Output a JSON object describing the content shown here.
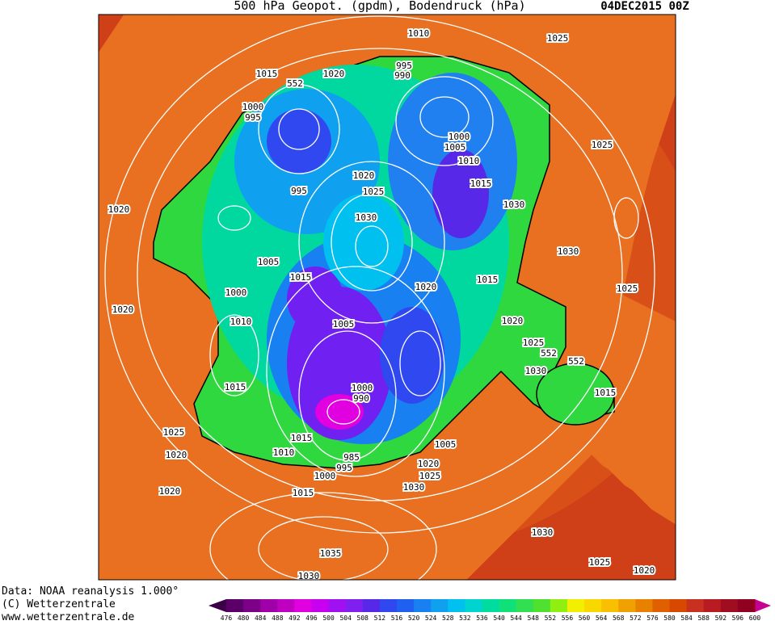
{
  "header": {
    "title": "500 hPa Geopot. (gpdm), Bodendruck (hPa)",
    "date": "04DEC2015 00Z"
  },
  "footer": {
    "lines": [
      "Data: NOAA reanalysis 1.000°",
      "(C) Wetterzentrale",
      "www.wetterzentrale.de"
    ]
  },
  "legend": {
    "levels": [
      476,
      480,
      484,
      488,
      492,
      496,
      500,
      504,
      508,
      512,
      516,
      520,
      524,
      528,
      532,
      536,
      540,
      544,
      548,
      552,
      556,
      560,
      564,
      568,
      572,
      576,
      580,
      584,
      588,
      592,
      596,
      600
    ],
    "colors": [
      "#5a0068",
      "#7c0088",
      "#a000a8",
      "#c000c0",
      "#e000e0",
      "#c800f0",
      "#a010f0",
      "#8020f0",
      "#5828e8",
      "#3048f0",
      "#2060f0",
      "#1880f0",
      "#10a0f0",
      "#00c0f0",
      "#00d4d0",
      "#00dca0",
      "#10e078",
      "#30e050",
      "#50e030",
      "#90ee10",
      "#f0f000",
      "#f8d800",
      "#f8c000",
      "#f0a000",
      "#e88000",
      "#e06000",
      "#d84800",
      "#c83020",
      "#b81c20",
      "#a00c20",
      "#900020"
    ],
    "end_colors": [
      "#3c0048",
      "#c80090"
    ]
  },
  "isobar_labels": [
    "1010",
    "1025",
    "1015",
    "1020",
    "552",
    "995",
    "990",
    "1000",
    "995",
    "1000",
    "1005",
    "1010",
    "1020",
    "995",
    "1025",
    "1015",
    "1030",
    "1030",
    "1020",
    "1025",
    "1030",
    "1005",
    "1015",
    "1020",
    "1015",
    "1025",
    "1000",
    "1020",
    "1010",
    "1005",
    "1020",
    "1025",
    "552",
    "552",
    "1030",
    "1015",
    "1000",
    "990",
    "1015",
    "1025",
    "1015",
    "1005",
    "1020",
    "1010",
    "985",
    "1020",
    "995",
    "1000",
    "1025",
    "1015",
    "1030",
    "1020",
    "1030",
    "1035",
    "1025",
    "1020",
    "1030"
  ]
}
